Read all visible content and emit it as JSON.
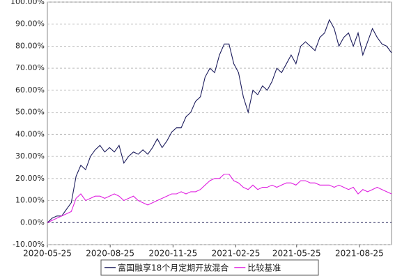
{
  "chart_data": {
    "type": "line",
    "x": [
      "2020-05-25",
      "2020-06-01",
      "2020-06-08",
      "2020-06-15",
      "2020-06-22",
      "2020-06-29",
      "2020-07-06",
      "2020-07-13",
      "2020-07-20",
      "2020-07-27",
      "2020-08-03",
      "2020-08-10",
      "2020-08-17",
      "2020-08-24",
      "2020-08-31",
      "2020-09-07",
      "2020-09-14",
      "2020-09-21",
      "2020-09-28",
      "2020-10-05",
      "2020-10-12",
      "2020-10-19",
      "2020-10-26",
      "2020-11-02",
      "2020-11-09",
      "2020-11-16",
      "2020-11-23",
      "2020-11-30",
      "2020-12-07",
      "2020-12-14",
      "2020-12-21",
      "2020-12-28",
      "2021-01-04",
      "2021-01-11",
      "2021-01-18",
      "2021-01-25",
      "2021-02-01",
      "2021-02-08",
      "2021-02-15",
      "2021-02-22",
      "2021-03-01",
      "2021-03-08",
      "2021-03-15",
      "2021-03-22",
      "2021-03-29",
      "2021-04-05",
      "2021-04-12",
      "2021-04-19",
      "2021-04-26",
      "2021-05-03",
      "2021-05-10",
      "2021-05-17",
      "2021-05-24",
      "2021-05-31",
      "2021-06-07",
      "2021-06-14",
      "2021-06-21",
      "2021-06-28",
      "2021-07-05",
      "2021-07-12",
      "2021-07-19",
      "2021-07-26",
      "2021-08-02",
      "2021-08-09",
      "2021-08-16",
      "2021-08-23",
      "2021-08-30",
      "2021-09-06",
      "2021-09-13",
      "2021-09-20",
      "2021-09-27",
      "2021-10-04",
      "2021-10-11"
    ],
    "series": [
      {
        "name": "富国融享18个月定期开放混合",
        "color": "#1c1c5c",
        "values": [
          0,
          2,
          3,
          3,
          6,
          9,
          21,
          26,
          24,
          30,
          33,
          35,
          32,
          34,
          32,
          35,
          27,
          30,
          32,
          31,
          33,
          31,
          34,
          38,
          34,
          37,
          41,
          43,
          43,
          48,
          50,
          55,
          57,
          66,
          70,
          68,
          76,
          81,
          81,
          72,
          68,
          57,
          50,
          60,
          58,
          62,
          60,
          64,
          70,
          68,
          72,
          76,
          72,
          80,
          82,
          80,
          78,
          84,
          86,
          92,
          88,
          80,
          84,
          86,
          80,
          86,
          76,
          82,
          88,
          84,
          81,
          80,
          77
        ]
      },
      {
        "name": "比较基准",
        "color": "#e020e0",
        "values": [
          0,
          1,
          2,
          3,
          4,
          5,
          11,
          13,
          10,
          11,
          12,
          12,
          11,
          12,
          13,
          12,
          10,
          11,
          12,
          10,
          9,
          8,
          9,
          10,
          11,
          12,
          13,
          13,
          14,
          13,
          14,
          14,
          15,
          17,
          19,
          20,
          20,
          22,
          22,
          19,
          18,
          16,
          15,
          17,
          15,
          16,
          16,
          17,
          16,
          17,
          18,
          18,
          17,
          19,
          19,
          18,
          18,
          17,
          17,
          17,
          16,
          17,
          16,
          15,
          16,
          13,
          15,
          14,
          15,
          16,
          15,
          14,
          13
        ]
      }
    ],
    "xlim": [
      "2020-05-25",
      "2021-10-11"
    ],
    "xticks": [
      "2020-05-25",
      "2020-08-25",
      "2020-11-25",
      "2021-02-25",
      "2021-05-25",
      "2021-08-25"
    ],
    "ylim": [
      -10,
      100
    ],
    "yticks": [
      {
        "value": -10,
        "label": "-10.00%"
      },
      {
        "value": 0,
        "label": "0.00%"
      },
      {
        "value": 10,
        "label": "10.00%"
      },
      {
        "value": 20,
        "label": "20.00%"
      },
      {
        "value": 30,
        "label": "30.00%"
      },
      {
        "value": 40,
        "label": "40.00%"
      },
      {
        "value": 50,
        "label": "50.00%"
      },
      {
        "value": 60,
        "label": "60.00%"
      },
      {
        "value": 70,
        "label": "70.00%"
      },
      {
        "value": 80,
        "label": "80.00%"
      },
      {
        "value": 90,
        "label": "90.00%"
      },
      {
        "value": 100,
        "label": "100.00%"
      }
    ],
    "grid": true
  }
}
